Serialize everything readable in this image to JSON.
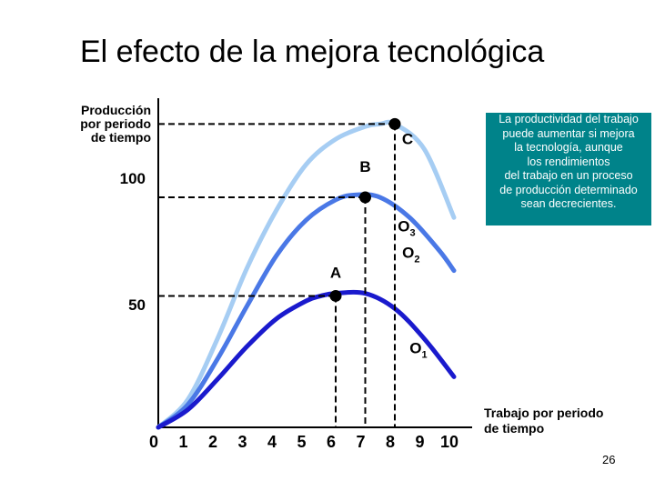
{
  "slide": {
    "title": "El efecto de la mejora tecnológica",
    "page_number": "26",
    "note_lines": [
      "La productividad del trabajo",
      "puede aumentar si mejora",
      "la tecnología, aunque",
      "los rendimientos",
      "del trabajo en un proceso",
      "de producción determinado",
      "sean decrecientes."
    ]
  },
  "chart_data": {
    "type": "line",
    "title": "",
    "ylabel_lines": [
      "Producción",
      "por periodo",
      "de  tiempo"
    ],
    "xlabel_lines": [
      "Trabajo por periodo",
      "de  tiempo"
    ],
    "x_ticks": [
      0,
      1,
      2,
      3,
      4,
      5,
      6,
      7,
      8,
      9,
      10
    ],
    "y_ticks": [
      50,
      100
    ],
    "xlim": [
      0,
      10
    ],
    "series": [
      {
        "name": "O1",
        "color": "#1a1acd",
        "x": [
          0,
          1,
          2,
          3,
          4,
          5,
          5.5,
          6,
          7,
          8,
          9,
          10
        ],
        "y": [
          0,
          7,
          19,
          32,
          43,
          50,
          52,
          53,
          53,
          47,
          35,
          20
        ]
      },
      {
        "name": "O2",
        "color": "#4a78e6",
        "x": [
          0,
          1,
          2,
          3,
          4,
          5,
          6,
          6.7,
          7.5,
          8.5,
          9.5,
          10
        ],
        "y": [
          0,
          9,
          27,
          48,
          68,
          82,
          90,
          92,
          91,
          83,
          70,
          62
        ]
      },
      {
        "name": "O3",
        "color": "#a6cdf3",
        "x": [
          0,
          1,
          2,
          3,
          4,
          5,
          6,
          7,
          7.5,
          8,
          9,
          10
        ],
        "y": [
          0,
          11,
          35,
          63,
          86,
          104,
          114,
          119,
          120,
          120,
          110,
          83
        ]
      }
    ],
    "points": [
      {
        "label": "A",
        "x": 6,
        "y": 52
      },
      {
        "label": "B",
        "x": 7,
        "y": 91
      },
      {
        "label": "C",
        "x": 8,
        "y": 120
      }
    ],
    "y_tick_labels": [
      "50",
      "100"
    ]
  }
}
